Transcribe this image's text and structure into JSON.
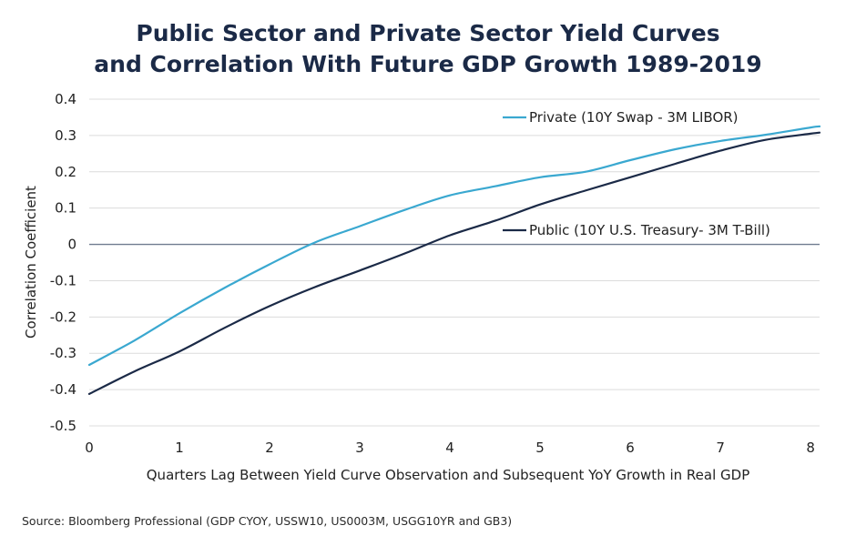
{
  "chart_data": {
    "type": "line",
    "title": [
      "Public Sector and Private Sector Yield Curves",
      "and Correlation With Future GDP Growth 1989-2019"
    ],
    "xlabel": "Quarters Lag Between Yield Curve Observation and Subsequent YoY Growth in Real GDP",
    "ylabel": "Correlation Coefficient",
    "xlim": [
      0,
      8.1
    ],
    "ylim": [
      -0.5,
      0.4
    ],
    "x_ticks": [
      0,
      1,
      2,
      3,
      4,
      5,
      6,
      7,
      8
    ],
    "y_ticks": [
      -0.5,
      -0.4,
      -0.3,
      -0.2,
      -0.1,
      0,
      0.1,
      0.2,
      0.3,
      0.4
    ],
    "y_tick_labels": [
      "-0.5",
      "-0.4",
      "-0.3",
      "-0.2",
      "-0.1",
      "0",
      "0.1",
      "0.2",
      "0.3",
      "0.4"
    ],
    "grid": "horizontal",
    "series": [
      {
        "name": "Private (10Y Swap - 3M LIBOR)",
        "color": "#3aa8d0",
        "label_position": "top-right",
        "x": [
          0,
          0.5,
          1,
          1.5,
          2,
          2.5,
          3,
          3.5,
          4,
          4.5,
          5,
          5.5,
          6,
          6.5,
          7,
          7.5,
          8,
          8.1
        ],
        "y": [
          -0.332,
          -0.265,
          -0.19,
          -0.12,
          -0.055,
          0.005,
          0.05,
          0.095,
          0.135,
          0.16,
          0.185,
          0.2,
          0.232,
          0.262,
          0.285,
          0.302,
          0.322,
          0.325
        ]
      },
      {
        "name": "Public (10Y U.S. Treasury- 3M T-Bill)",
        "color": "#1b2a47",
        "label_position": "middle-right",
        "x": [
          0,
          0.5,
          1,
          1.5,
          2,
          2.5,
          3,
          3.5,
          4,
          4.5,
          5,
          5.5,
          6,
          6.5,
          7,
          7.5,
          8,
          8.1
        ],
        "y": [
          -0.412,
          -0.35,
          -0.295,
          -0.23,
          -0.17,
          -0.118,
          -0.072,
          -0.025,
          0.025,
          0.065,
          0.11,
          0.148,
          0.185,
          0.222,
          0.258,
          0.288,
          0.305,
          0.308
        ]
      }
    ]
  },
  "source": "Source: Bloomberg Professional (GDP CYOY, USSW10, US0003M, USGG10YR and GB3)"
}
